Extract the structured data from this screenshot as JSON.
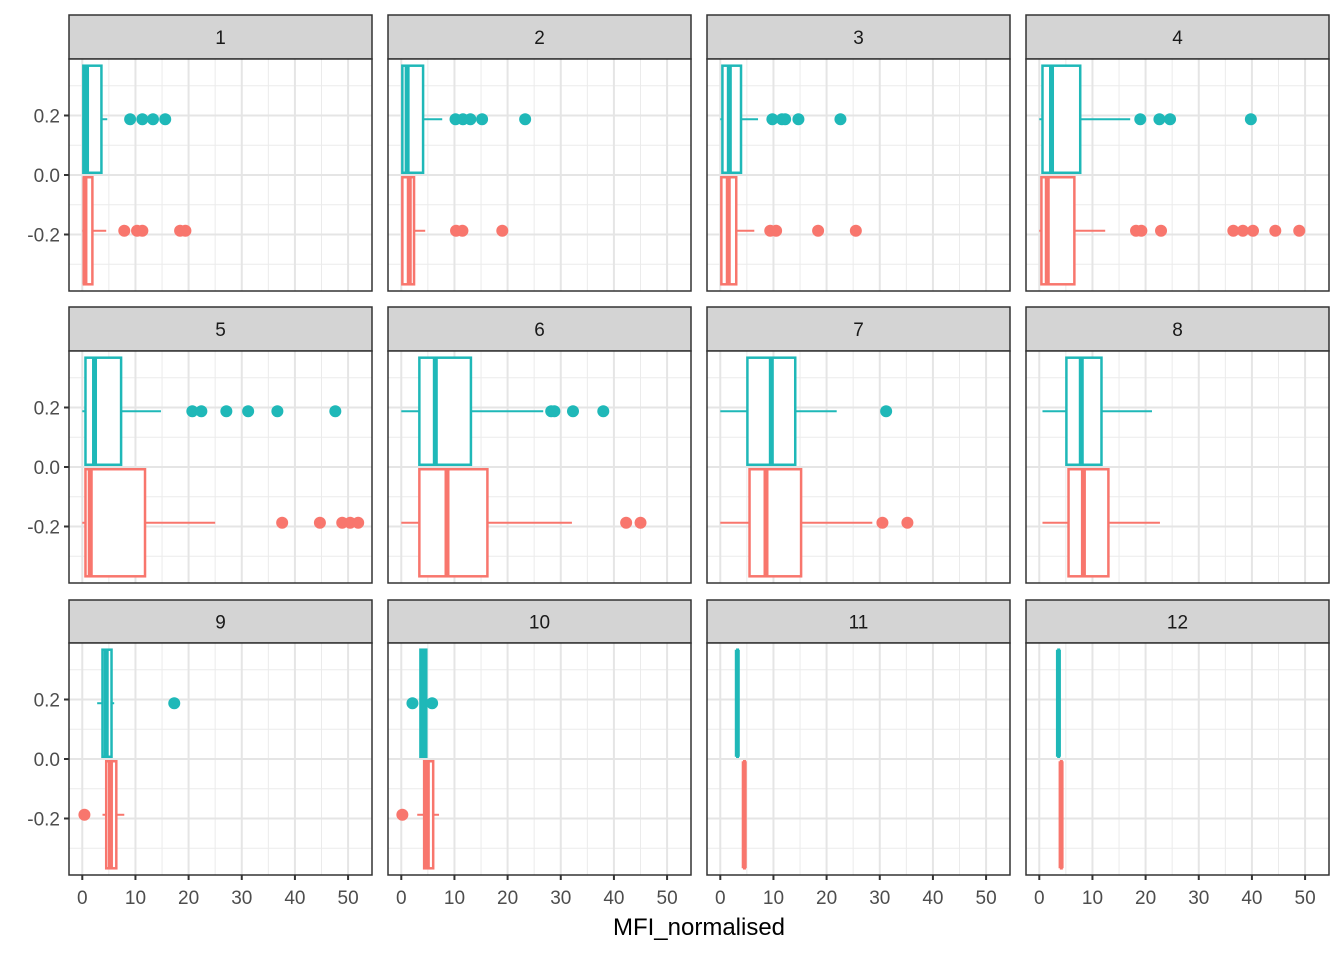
{
  "chart_data": {
    "type": "boxplot",
    "layout": "facet_wrap",
    "xlabel": "MFI_normalised",
    "ylabel": "",
    "xlim": [
      -2.5,
      54.5
    ],
    "ylim": [
      -0.39,
      0.39
    ],
    "x_ticks": [
      0,
      10,
      20,
      30,
      40,
      50
    ],
    "x_tick_labels": [
      "0",
      "10",
      "20",
      "30",
      "40",
      "50"
    ],
    "y_ticks": [
      0.2,
      0.0,
      -0.2
    ],
    "y_tick_labels": [
      "0.2",
      "0.0",
      "-0.2"
    ],
    "grid": true,
    "legend": "none",
    "series_colors": {
      "teal": "#1FB8B8",
      "red": "#F8766D"
    },
    "strip_fill": "#D4D4D4",
    "panels": [
      {
        "label": "1",
        "teal": {
          "y": 0.1875,
          "lower": 0.0,
          "q1": 0.2,
          "median": 0.8,
          "q3": 3.6,
          "upper": 4.7,
          "outliers": [
            9.0,
            11.3,
            13.3,
            15.6
          ]
        },
        "red": {
          "y": -0.1875,
          "lower": 0.0,
          "q1": 0.3,
          "median": 0.5,
          "q3": 1.9,
          "upper": 4.5,
          "outliers": [
            7.9,
            10.3,
            11.3,
            18.4,
            19.4
          ]
        }
      },
      {
        "label": "2",
        "teal": {
          "y": 0.1875,
          "lower": 0.0,
          "q1": 0.2,
          "median": 1.1,
          "q3": 4.1,
          "upper": 7.7,
          "outliers": [
            10.2,
            11.6,
            13.0,
            15.2,
            23.3
          ]
        },
        "red": {
          "y": -0.1875,
          "lower": 0.0,
          "q1": 0.2,
          "median": 1.5,
          "q3": 2.4,
          "upper": 4.5,
          "outliers": [
            10.3,
            11.5,
            19.0
          ]
        }
      },
      {
        "label": "3",
        "teal": {
          "y": 0.1875,
          "lower": 0.0,
          "q1": 0.4,
          "median": 1.7,
          "q3": 3.9,
          "upper": 7.1,
          "outliers": [
            9.8,
            11.6,
            12.2,
            14.7,
            22.6
          ]
        },
        "red": {
          "y": -0.1875,
          "lower": 0.0,
          "q1": 0.2,
          "median": 1.5,
          "q3": 3.0,
          "upper": 6.4,
          "outliers": [
            9.4,
            10.5,
            18.4,
            25.5
          ]
        }
      },
      {
        "label": "4",
        "teal": {
          "y": 0.1875,
          "lower": 0.0,
          "q1": 0.6,
          "median": 2.3,
          "q3": 7.7,
          "upper": 17.1,
          "outliers": [
            19.0,
            22.6,
            24.6,
            39.8
          ]
        },
        "red": {
          "y": -0.1875,
          "lower": 0.0,
          "q1": 0.4,
          "median": 1.5,
          "q3": 6.6,
          "upper": 12.4,
          "outliers": [
            18.2,
            19.2,
            22.9,
            36.5,
            38.3,
            40.2,
            44.4,
            48.9
          ]
        }
      },
      {
        "label": "5",
        "teal": {
          "y": 0.1875,
          "lower": 0.0,
          "q1": 0.6,
          "median": 2.3,
          "q3": 7.3,
          "upper": 14.8,
          "outliers": [
            20.7,
            22.4,
            27.1,
            31.2,
            36.7,
            47.6
          ]
        },
        "red": {
          "y": -0.1875,
          "lower": 0.0,
          "q1": 0.6,
          "median": 1.5,
          "q3": 11.8,
          "upper": 25.0,
          "outliers": [
            37.6,
            44.7,
            48.9,
            50.4,
            51.9
          ]
        }
      },
      {
        "label": "6",
        "teal": {
          "y": 0.1875,
          "lower": 0.0,
          "q1": 3.4,
          "median": 6.4,
          "q3": 13.1,
          "upper": 26.7,
          "outliers": [
            28.2,
            28.8,
            32.3,
            38.0
          ]
        },
        "red": {
          "y": -0.1875,
          "lower": 0.0,
          "q1": 3.4,
          "median": 8.6,
          "q3": 16.2,
          "upper": 32.1,
          "outliers": [
            42.3,
            45.0
          ]
        }
      },
      {
        "label": "7",
        "teal": {
          "y": 0.1875,
          "lower": 0.0,
          "q1": 5.1,
          "median": 9.6,
          "q3": 14.1,
          "upper": 21.9,
          "outliers": [
            31.2
          ]
        },
        "red": {
          "y": -0.1875,
          "lower": 0.0,
          "q1": 5.5,
          "median": 8.6,
          "q3": 15.2,
          "upper": 28.6,
          "outliers": [
            30.5,
            35.2
          ]
        }
      },
      {
        "label": "8",
        "teal": {
          "y": 0.1875,
          "lower": 0.6,
          "q1": 5.1,
          "median": 7.9,
          "q3": 11.7,
          "upper": 21.2,
          "outliers": []
        },
        "red": {
          "y": -0.1875,
          "lower": 0.6,
          "q1": 5.5,
          "median": 8.3,
          "q3": 13.0,
          "upper": 22.7,
          "outliers": []
        }
      },
      {
        "label": "9",
        "teal": {
          "y": 0.1875,
          "lower": 2.8,
          "q1": 3.8,
          "median": 4.5,
          "q3": 5.5,
          "upper": 6.0,
          "outliers": [
            17.3
          ]
        },
        "red": {
          "y": -0.1875,
          "lower": 3.8,
          "q1": 4.5,
          "median": 5.3,
          "q3": 6.4,
          "upper": 7.9,
          "outliers": [
            0.4
          ]
        }
      },
      {
        "label": "10",
        "teal": {
          "y": 0.1875,
          "lower": 3.6,
          "q1": 3.6,
          "median": 4.1,
          "q3": 4.7,
          "upper": 4.7,
          "outliers": [
            2.1,
            5.8
          ]
        },
        "red": {
          "y": -0.1875,
          "lower": 3.0,
          "q1": 4.3,
          "median": 4.9,
          "q3": 6.0,
          "upper": 7.1,
          "outliers": [
            0.2
          ]
        }
      },
      {
        "label": "11",
        "teal": {
          "y": 0.1875,
          "lower": 3.2,
          "q1": 3.2,
          "median": 3.2,
          "q3": 3.2,
          "upper": 3.2,
          "outliers": []
        },
        "red": {
          "y": -0.1875,
          "lower": 4.5,
          "q1": 4.5,
          "median": 4.5,
          "q3": 4.5,
          "upper": 4.5,
          "outliers": []
        }
      },
      {
        "label": "12",
        "teal": {
          "y": 0.1875,
          "lower": 3.6,
          "q1": 3.6,
          "median": 3.6,
          "q3": 3.6,
          "upper": 3.6,
          "outliers": []
        },
        "red": {
          "y": -0.1875,
          "lower": 4.1,
          "q1": 4.1,
          "median": 4.1,
          "q3": 4.1,
          "upper": 4.1,
          "outliers": []
        }
      }
    ]
  }
}
